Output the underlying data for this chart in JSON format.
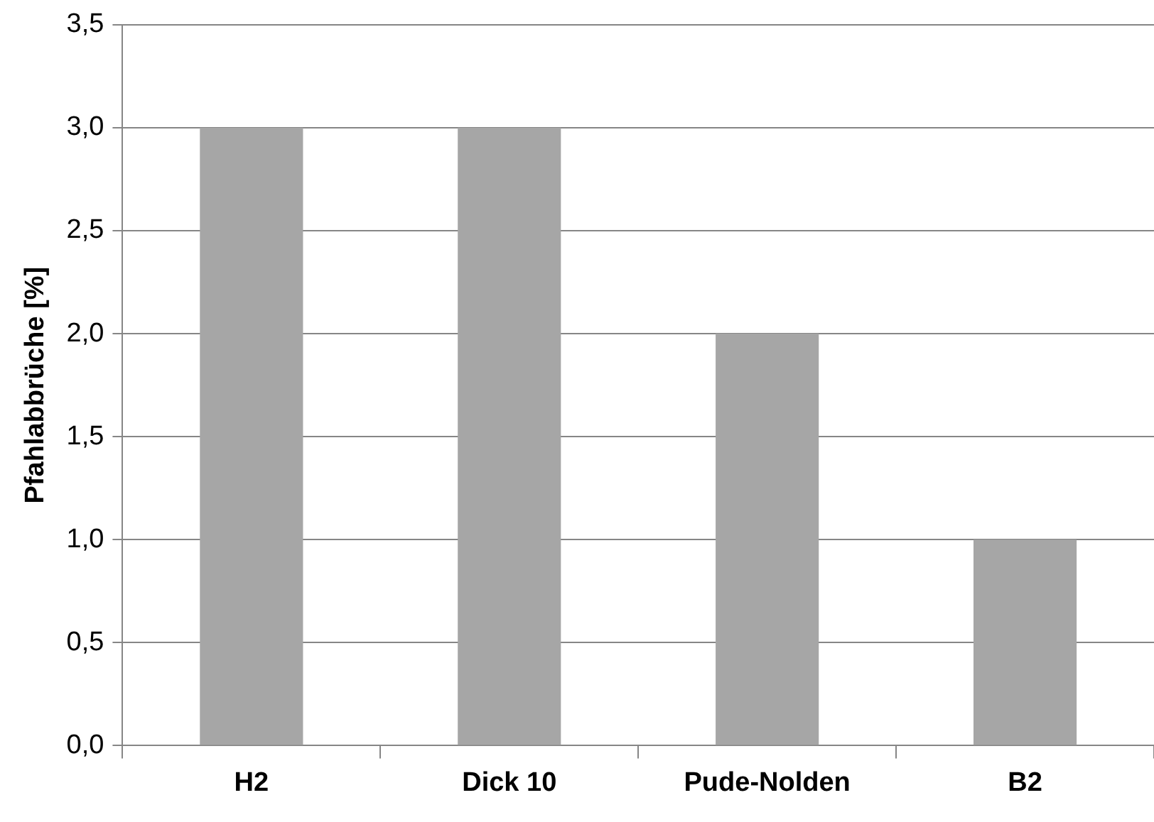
{
  "chart_data": {
    "type": "bar",
    "ylabel": "Pfahlabbrüche [%]",
    "categories": [
      "H2",
      "Dick 10",
      "Pude-Nolden",
      "B2"
    ],
    "values": [
      3,
      3,
      2,
      1
    ],
    "color": "#a6a6a6",
    "ylim": [
      0,
      3.5
    ],
    "yticks": [
      {
        "value": 0,
        "label": "0,0"
      },
      {
        "value": 0.5,
        "label": "0,5"
      },
      {
        "value": 1,
        "label": "1,0"
      },
      {
        "value": 1.5,
        "label": "1,5"
      },
      {
        "value": 2,
        "label": "2,0"
      },
      {
        "value": 2.5,
        "label": "2,5"
      },
      {
        "value": 3,
        "label": "3,0"
      },
      {
        "value": 3.5,
        "label": "3,5"
      }
    ],
    "grid": "y",
    "legend": false
  }
}
